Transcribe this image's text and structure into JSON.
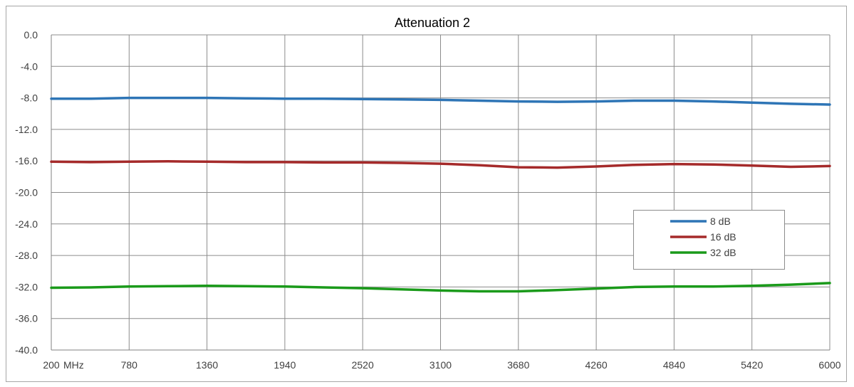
{
  "chart_data": {
    "type": "line",
    "title": "Attenuation 2",
    "x_tick_labels": [
      "200",
      "780",
      "1360",
      "1940",
      "2520",
      "3100",
      "3680",
      "4260",
      "4840",
      "5420",
      "6000"
    ],
    "x_unit_label": "MHz",
    "y_tick_labels": [
      "0.0",
      "-4.0",
      "-8.0",
      "-12.0",
      "-16.0",
      "-20.0",
      "-24.0",
      "-28.0",
      "-32.0",
      "-36.0",
      "-40.0"
    ],
    "xlim": [
      200,
      6000
    ],
    "ylim": [
      -40,
      0
    ],
    "grid": true,
    "legend_position": "right",
    "x": [
      200,
      490,
      780,
      1070,
      1360,
      1650,
      1940,
      2230,
      2520,
      2810,
      3100,
      3390,
      3680,
      3970,
      4260,
      4550,
      4840,
      5130,
      5420,
      5710,
      6000
    ],
    "series": [
      {
        "name": "8 dB",
        "color": "#2e75b6",
        "values": [
          -8.1,
          -8.1,
          -8.0,
          -8.0,
          -8.0,
          -8.05,
          -8.1,
          -8.1,
          -8.15,
          -8.2,
          -8.25,
          -8.35,
          -8.45,
          -8.5,
          -8.45,
          -8.35,
          -8.35,
          -8.45,
          -8.6,
          -8.75,
          -8.85
        ]
      },
      {
        "name": "16 dB",
        "color": "#a52a2a",
        "values": [
          -16.1,
          -16.15,
          -16.1,
          -16.05,
          -16.1,
          -16.15,
          -16.15,
          -16.2,
          -16.2,
          -16.25,
          -16.35,
          -16.55,
          -16.8,
          -16.85,
          -16.7,
          -16.5,
          -16.4,
          -16.45,
          -16.6,
          -16.75,
          -16.65
        ]
      },
      {
        "name": "32 dB",
        "color": "#1a9a1a",
        "values": [
          -32.1,
          -32.05,
          -31.95,
          -31.9,
          -31.85,
          -31.9,
          -31.95,
          -32.05,
          -32.15,
          -32.3,
          -32.45,
          -32.55,
          -32.55,
          -32.4,
          -32.2,
          -32.0,
          -31.95,
          -31.95,
          -31.85,
          -31.7,
          -31.5
        ]
      }
    ]
  }
}
